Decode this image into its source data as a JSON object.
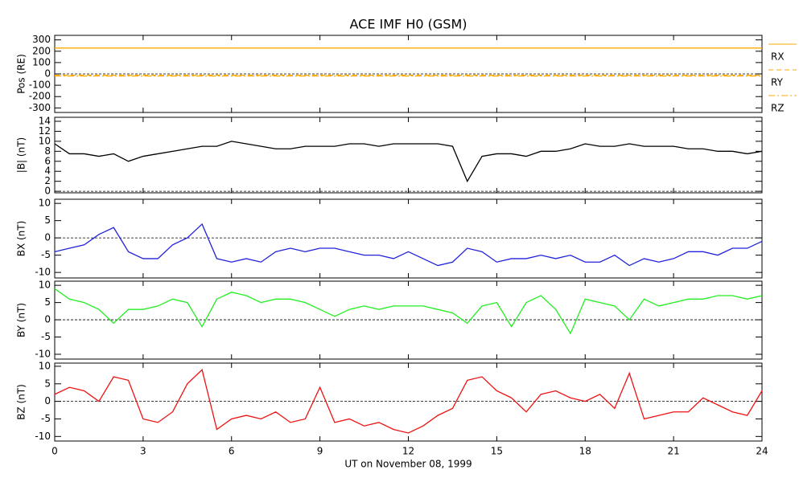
{
  "chart_data": [
    {
      "type": "line",
      "title": "ACE IMF H0 (GSM)",
      "ylabel": "Pos (RE)",
      "xlim": [
        0,
        24
      ],
      "ylim": [
        -340,
        340
      ],
      "yticks": [
        300,
        200,
        100,
        0,
        -100,
        -200,
        -300
      ],
      "x": [
        0,
        24
      ],
      "series": [
        {
          "name": "RX",
          "color": "#ffaa00",
          "dash": "solid",
          "values": [
            228,
            228
          ]
        },
        {
          "name": "RY",
          "color": "#ffaa00",
          "dash": "dashed",
          "values": [
            -12,
            -12
          ]
        },
        {
          "name": "RZ",
          "color": "#ffaa00",
          "dash": "dashdot",
          "values": [
            -18,
            -18
          ]
        }
      ]
    },
    {
      "type": "line",
      "ylabel": "|B| (nT)",
      "xlim": [
        0,
        24
      ],
      "ylim": [
        -0.3,
        14.8
      ],
      "yticks": [
        0,
        2,
        4,
        6,
        8,
        10,
        12,
        14
      ],
      "x": [
        0,
        0.5,
        1,
        1.5,
        2,
        2.5,
        3,
        3.5,
        4,
        4.5,
        5,
        5.5,
        6,
        6.5,
        7,
        7.5,
        8,
        8.5,
        9,
        9.5,
        10,
        10.5,
        11,
        11.5,
        12,
        12.5,
        13,
        13.5,
        14,
        14.5,
        15,
        15.5,
        16,
        16.5,
        17,
        17.5,
        18,
        18.5,
        19,
        19.5,
        20,
        20.5,
        21,
        21.5,
        22,
        22.5,
        23,
        23.5,
        24
      ],
      "series": [
        {
          "color": "#000000",
          "values": [
            9.5,
            7.5,
            7.5,
            7,
            7.5,
            6,
            7,
            7.5,
            8,
            8.5,
            9,
            9,
            10,
            9.5,
            9,
            8.5,
            8.5,
            9,
            9,
            9,
            9.5,
            9.5,
            9,
            9.5,
            9.5,
            9.5,
            9.5,
            9,
            2,
            7,
            7.5,
            7.5,
            7,
            8,
            8,
            8.5,
            9.5,
            9,
            9,
            9.5,
            9,
            9,
            9,
            8.5,
            8.5,
            8,
            8,
            7.5,
            8
          ]
        }
      ]
    },
    {
      "type": "line",
      "ylabel": "BX (nT)",
      "xlim": [
        0,
        24
      ],
      "ylim": [
        -11.6,
        11.2
      ],
      "yticks": [
        10,
        5,
        0,
        -5,
        -10
      ],
      "x": [
        0,
        0.5,
        1,
        1.5,
        2,
        2.5,
        3,
        3.5,
        4,
        4.5,
        5,
        5.5,
        6,
        6.5,
        7,
        7.5,
        8,
        8.5,
        9,
        9.5,
        10,
        10.5,
        11,
        11.5,
        12,
        12.5,
        13,
        13.5,
        14,
        14.5,
        15,
        15.5,
        16,
        16.5,
        17,
        17.5,
        18,
        18.5,
        19,
        19.5,
        20,
        20.5,
        21,
        21.5,
        22,
        22.5,
        23,
        23.5,
        24
      ],
      "series": [
        {
          "color": "#2222dd",
          "values": [
            -4,
            -3,
            -2,
            1,
            3,
            -4,
            -6,
            -6,
            -2,
            0,
            4,
            -6,
            -7,
            -6,
            -7,
            -4,
            -3,
            -4,
            -3,
            -3,
            -4,
            -5,
            -5,
            -6,
            -4,
            -6,
            -8,
            -7,
            -3,
            -4,
            -7,
            -6,
            -6,
            -5,
            -6,
            -5,
            -7,
            -7,
            -5,
            -8,
            -6,
            -7,
            -6,
            -4,
            -4,
            -5,
            -3,
            -3,
            -1
          ]
        }
      ]
    },
    {
      "type": "line",
      "ylabel": "BY (nT)",
      "xlim": [
        0,
        24
      ],
      "ylim": [
        -11.4,
        11.2
      ],
      "yticks": [
        10,
        5,
        0,
        -5,
        -10
      ],
      "x": [
        0,
        0.5,
        1,
        1.5,
        2,
        2.5,
        3,
        3.5,
        4,
        4.5,
        5,
        5.5,
        6,
        6.5,
        7,
        7.5,
        8,
        8.5,
        9,
        9.5,
        10,
        10.5,
        11,
        11.5,
        12,
        12.5,
        13,
        13.5,
        14,
        14.5,
        15,
        15.5,
        16,
        16.5,
        17,
        17.5,
        18,
        18.5,
        19,
        19.5,
        20,
        20.5,
        21,
        21.5,
        22,
        22.5,
        23,
        23.5,
        24
      ],
      "series": [
        {
          "color": "#22ee22",
          "values": [
            9,
            6,
            5,
            3,
            -1,
            3,
            3,
            4,
            6,
            5,
            -2,
            6,
            8,
            7,
            5,
            6,
            6,
            5,
            3,
            1,
            3,
            4,
            3,
            4,
            4,
            4,
            3,
            2,
            -1,
            4,
            5,
            -2,
            5,
            7,
            3,
            -4,
            6,
            5,
            4,
            0,
            6,
            4,
            5,
            6,
            6,
            7,
            7,
            6,
            7
          ]
        }
      ]
    },
    {
      "type": "line",
      "ylabel": "BZ (nT)",
      "xlabel": "UT on November 08, 1999",
      "xlim": [
        0,
        24
      ],
      "ylim": [
        -11.3,
        10.9
      ],
      "yticks": [
        10,
        5,
        0,
        -5,
        -10
      ],
      "xticks": [
        0,
        3,
        6,
        9,
        12,
        15,
        18,
        21,
        24
      ],
      "x": [
        0,
        0.5,
        1,
        1.5,
        2,
        2.5,
        3,
        3.5,
        4,
        4.5,
        5,
        5.5,
        6,
        6.5,
        7,
        7.5,
        8,
        8.5,
        9,
        9.5,
        10,
        10.5,
        11,
        11.5,
        12,
        12.5,
        13,
        13.5,
        14,
        14.5,
        15,
        15.5,
        16,
        16.5,
        17,
        17.5,
        18,
        18.5,
        19,
        19.5,
        20,
        20.5,
        21,
        21.5,
        22,
        22.5,
        23,
        23.5,
        24
      ],
      "series": [
        {
          "color": "#ee1111",
          "values": [
            2,
            4,
            3,
            0,
            7,
            6,
            -5,
            -6,
            -3,
            5,
            9,
            -8,
            -5,
            -4,
            -5,
            -3,
            -6,
            -5,
            4,
            -6,
            -5,
            -7,
            -6,
            -8,
            -9,
            -7,
            -4,
            -2,
            6,
            7,
            3,
            1,
            -3,
            2,
            3,
            1,
            0,
            2,
            -2,
            8,
            -5,
            -4,
            -3,
            -3,
            1,
            -1,
            -3,
            -4,
            3
          ]
        }
      ]
    }
  ]
}
